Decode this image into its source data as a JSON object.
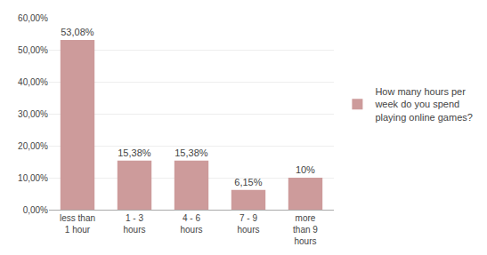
{
  "chart_data": {
    "type": "bar",
    "categories": [
      "less than\n1 hour",
      "1 - 3\nhours",
      "4 - 6\nhours",
      "7 - 9\nhours",
      "more\nthan 9\nhours"
    ],
    "series": [
      {
        "name": "How many hours per\nweek do you spend\nplaying online games?",
        "color": "#cd9b9b",
        "values": [
          53.08,
          15.38,
          15.38,
          6.15,
          10.0
        ],
        "value_labels": [
          "53,08%",
          "15,38%",
          "15,38%",
          "6,15%",
          "10%"
        ]
      }
    ],
    "data_labels": true,
    "ylim": [
      0,
      60
    ],
    "yticks": [
      {
        "value": 0,
        "label": "0,00%"
      },
      {
        "value": 10,
        "label": "10,00%"
      },
      {
        "value": 20,
        "label": "20,00%"
      },
      {
        "value": 30,
        "label": "30,00%"
      },
      {
        "value": 40,
        "label": "40,00%"
      },
      {
        "value": 50,
        "label": "50,00%"
      },
      {
        "value": 60,
        "label": "60,00%"
      }
    ],
    "grid": true,
    "legend": "right"
  }
}
